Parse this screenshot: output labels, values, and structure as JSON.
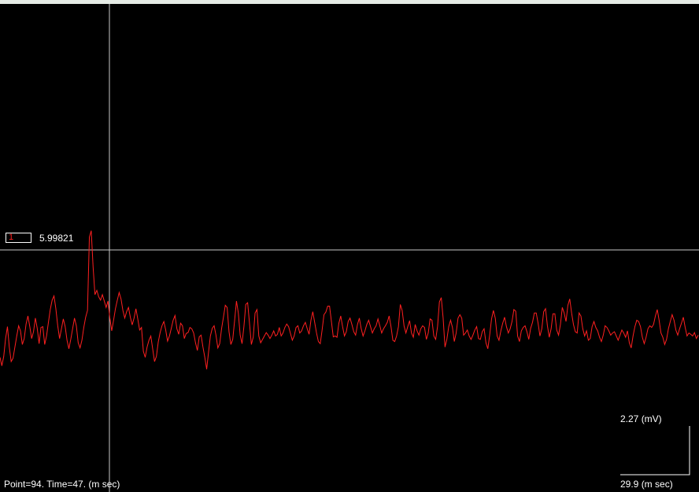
{
  "window": {
    "frame_color": "#e6ece6"
  },
  "channel": {
    "number": "1",
    "value": "5.99821",
    "trace_color": "#ff2020"
  },
  "status": {
    "readout": "Point=94.  Time=47. (m sec)"
  },
  "scale_bar": {
    "y_label": "2.27 (mV)",
    "x_label": "29.9 (m sec)"
  },
  "colors": {
    "background": "#000000",
    "cursor": "#c8c8c8",
    "baseline": "#c8c8c8",
    "text": "#ffffff"
  },
  "chart_data": {
    "type": "line",
    "series": [
      {
        "values": [
          -0.62,
          -0.82,
          -0.6,
          -0.18,
          0.1,
          -0.38,
          -0.72,
          -0.64,
          -0.38,
          -0.12,
          0.12,
          0.0,
          -0.32,
          -0.18,
          0.16,
          0.35,
          0.1,
          -0.18,
          -0.02,
          0.3,
          0.06,
          -0.3,
          0.08,
          0.1,
          -0.32,
          -0.12,
          0.2,
          0.5,
          0.72,
          0.82,
          0.52,
          0.12,
          -0.18,
          0.05,
          0.28,
          0.1,
          -0.22,
          -0.42,
          -0.2,
          0.05,
          0.3,
          0.12,
          -0.28,
          -0.4,
          -0.22,
          0.08,
          0.32,
          0.48,
          2.2,
          2.35,
          1.5,
          0.85,
          0.95,
          0.8,
          0.72,
          0.85,
          0.7,
          0.55,
          0.7,
          0.3,
          0.0,
          0.25,
          0.52,
          0.72,
          0.9,
          0.75,
          0.48,
          0.3,
          0.45,
          0.55,
          0.32,
          0.14,
          0.3,
          0.52,
          0.28,
          0.02,
          0.08,
          -0.48,
          -0.62,
          -0.38,
          -0.22,
          -0.12,
          -0.42,
          -0.72,
          -0.6,
          -0.26,
          -0.04,
          0.12,
          0.22,
          0.02,
          -0.24,
          -0.12,
          0.06,
          0.25,
          0.36,
          0.05,
          -0.08,
          0.18,
          0.12,
          -0.18,
          -0.06,
          -0.04,
          0.08,
          0.05,
          -0.05,
          -0.28,
          -0.46,
          -0.14,
          -0.1,
          -0.38,
          -0.62,
          -0.9,
          -0.5,
          -0.12,
          0.06,
          0.12,
          -0.1,
          -0.4,
          -0.3,
          0.05,
          0.32,
          0.6,
          0.55,
          -0.02,
          -0.32,
          -0.2,
          0.24,
          0.7,
          0.42,
          -0.1,
          -0.3,
          0.1,
          0.62,
          0.66,
          0.18,
          -0.32,
          -0.15,
          0.42,
          0.5,
          -0.12,
          -0.28,
          -0.2,
          -0.12,
          -0.04,
          -0.1,
          -0.18,
          -0.1,
          0.0,
          -0.12,
          -0.08,
          0.08,
          -0.12,
          -0.05,
          0.08,
          0.16,
          0.1,
          -0.06,
          -0.22,
          -0.12,
          0.08,
          0.12,
          -0.05,
          0.0,
          0.12,
          0.2,
          0.05,
          -0.08,
          0.25,
          0.45,
          0.2,
          -0.05,
          -0.25,
          -0.3,
          0.02,
          0.38,
          0.44,
          0.58,
          0.58,
          0.22,
          -0.14,
          -0.12,
          -0.15,
          0.18,
          0.35,
          0.1,
          -0.12,
          -0.02,
          0.22,
          0.3,
          0.15,
          -0.02,
          -0.1,
          0.15,
          0.3,
          0.05,
          -0.12,
          0.0,
          0.15,
          0.25,
          0.1,
          -0.05,
          0.05,
          0.12,
          0.28,
          0.12,
          -0.05,
          0.05,
          0.12,
          0.2,
          0.35,
          0.1,
          -0.22,
          -0.25,
          -0.12,
          0.1,
          0.62,
          0.48,
          0.12,
          -0.05,
          0.1,
          0.24,
          -0.05,
          -0.15,
          0.15,
          0.0,
          -0.1,
          0.05,
          0.12,
          0.08,
          -0.2,
          -0.05,
          0.28,
          0.25,
          -0.12,
          -0.2,
          0.1,
          0.68,
          0.78,
          0.3,
          -0.38,
          -0.2,
          0.1,
          0.25,
          0.08,
          -0.25,
          -0.05,
          0.3,
          0.38,
          0.3,
          -0.1,
          -0.05,
          0.02,
          -0.12,
          -0.2,
          -0.1,
          0.02,
          0.1,
          -0.18,
          -0.2,
          -0.02,
          0.05,
          -0.28,
          -0.42,
          -0.1,
          0.28,
          0.48,
          0.3,
          -0.12,
          -0.22,
          0.0,
          0.18,
          0.32,
          0.1,
          -0.05,
          0.05,
          0.22,
          0.5,
          0.46,
          -0.12,
          -0.25,
          0.0,
          0.08,
          0.12,
          -0.02,
          -0.2,
          0.06,
          0.2,
          0.42,
          0.42,
          0.18,
          -0.12,
          0.05,
          0.45,
          0.52,
          0.12,
          -0.15,
          0.05,
          0.4,
          0.4,
          0.02,
          -0.1,
          0.15,
          0.55,
          0.42,
          0.22,
          0.6,
          0.75,
          0.42,
          0.15,
          -0.02,
          -0.05,
          0.42,
          0.35,
          0.05,
          -0.12,
          0.0,
          -0.22,
          -0.18,
          0.1,
          0.22,
          0.08,
          0.0,
          -0.15,
          -0.25,
          -0.1,
          0.12,
          0.08,
          0.0,
          -0.1,
          -0.05,
          -0.02,
          -0.12,
          -0.22,
          -0.1,
          0.02,
          -0.05,
          -0.15,
          0.0,
          -0.28,
          -0.4,
          -0.12,
          0.1,
          0.25,
          0.22,
          0.1,
          -0.15,
          -0.3,
          -0.15,
          0.05,
          0.12,
          0.08,
          0.15,
          0.35,
          0.5,
          0.25,
          -0.05,
          -0.15,
          -0.32,
          -0.2,
          0.05,
          0.22,
          0.38,
          0.25,
          0.02,
          -0.1,
          0.05,
          0.18,
          0.32,
          0.08,
          -0.12,
          -0.05,
          -0.08,
          -0.12,
          -0.04,
          -0.18,
          -0.1
        ]
      }
    ],
    "ylim": [
      -3.78,
      7.67
    ],
    "xlim": [
      0,
      439
    ]
  }
}
